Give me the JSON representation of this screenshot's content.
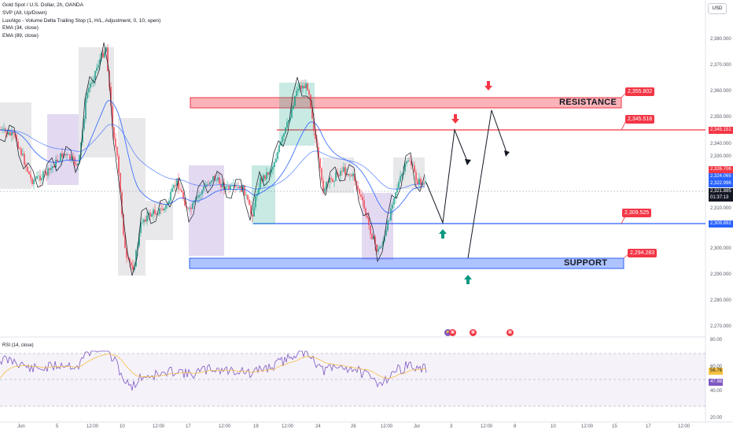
{
  "legend": {
    "symbol": "Gold Spot / U.S. Dollar, 2h, OANDA",
    "indicators": [
      "SVP (All, Up/Down)",
      "LuxAlgo - Volume Delta Trailing Stop (1, H/L, Adjustment, 0, 10, open)",
      "EMA (34, close)",
      "EMA (89, close)"
    ]
  },
  "currency_button": "USD",
  "price_axis": [
    "2,380.000",
    "2,370.000",
    "2,360.000",
    "2,350.000",
    "2,340.000",
    "2,330.000",
    "2,310.000",
    "2,300.000",
    "2,290.000",
    "2,280.000",
    "2,270.000"
  ],
  "price_tags": {
    "resistance_line": "2,345.151",
    "ema34": "2,326.706",
    "ema89": "2,324.065",
    "sma": "2,322.996",
    "last": "2,321.885",
    "countdown": "01:37:13",
    "support_line": "2,309.892"
  },
  "colors": {
    "up": "#089981",
    "down": "#f23645",
    "accent": "#2962ff",
    "resistance": "#f23645",
    "support": "#2962ff",
    "rsi": "#7e57c2",
    "rsi_ma": "#f5c142"
  },
  "callouts": {
    "resistance_top": "2,355.802",
    "resistance_mid": "2,345.518",
    "support_mid": "2,309.525",
    "support_bottom": "2,294.283"
  },
  "zones": {
    "resistance": "RESISTANCE",
    "support": "SUPPORT"
  },
  "rsi": {
    "label": "RSI (14, close)",
    "axis": [
      "80.00",
      "60.00",
      "40.00",
      "20.00"
    ],
    "value": "47.98",
    "ma_value": "56.76"
  },
  "time_axis": [
    "Jun",
    "5",
    "12:00",
    "10",
    "12:00",
    "17",
    "12:00",
    "19",
    "12:00",
    "24",
    "26",
    "12:00",
    "Jul",
    "3",
    "12:00",
    "8",
    "10",
    "12:00",
    "15",
    "17",
    "12:00"
  ],
  "events": [
    "event-flag",
    "us-flag",
    "us-flag",
    "us-flag"
  ]
}
